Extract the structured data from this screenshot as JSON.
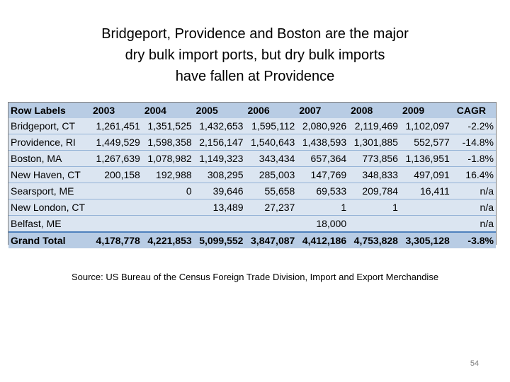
{
  "title_lines": [
    "Bridgeport, Providence and Boston are the major",
    "dry bulk import ports, but dry bulk imports",
    "have fallen at Providence"
  ],
  "table": {
    "headers": [
      "Row Labels",
      "2003",
      "2004",
      "2005",
      "2006",
      "2007",
      "2008",
      "2009",
      "CAGR"
    ],
    "rows": [
      [
        "Bridgeport, CT",
        "1,261,451",
        "1,351,525",
        "1,432,653",
        "1,595,112",
        "2,080,926",
        "2,119,469",
        "1,102,097",
        "-2.2%"
      ],
      [
        "Providence, RI",
        "1,449,529",
        "1,598,358",
        "2,156,147",
        "1,540,643",
        "1,438,593",
        "1,301,885",
        "552,577",
        "-14.8%"
      ],
      [
        "Boston, MA",
        "1,267,639",
        "1,078,982",
        "1,149,323",
        "343,434",
        "657,364",
        "773,856",
        "1,136,951",
        "-1.8%"
      ],
      [
        "New Haven, CT",
        "200,158",
        "192,988",
        "308,295",
        "285,003",
        "147,769",
        "348,833",
        "497,091",
        "16.4%"
      ],
      [
        "Searsport, ME",
        "",
        "0",
        "39,646",
        "55,658",
        "69,533",
        "209,784",
        "16,411",
        "n/a"
      ],
      [
        "New London, CT",
        "",
        "",
        "13,489",
        "27,237",
        "1",
        "1",
        "",
        "n/a"
      ],
      [
        "Belfast, ME",
        "",
        "",
        "",
        "",
        "18,000",
        "",
        "",
        "n/a"
      ]
    ],
    "total": [
      "Grand Total",
      "4,178,778",
      "4,221,853",
      "5,099,552",
      "3,847,087",
      "4,412,186",
      "4,753,828",
      "3,305,128",
      "-3.8%"
    ]
  },
  "source": "Source: US Bureau of the Census Foreign Trade Division, Import and Export Merchandise",
  "page_number": "54",
  "colors": {
    "table_body": "#dbe5f1",
    "table_header": "#b8cce4",
    "row_rule": "#95b3d7",
    "total_rule": "#4f81bd"
  }
}
